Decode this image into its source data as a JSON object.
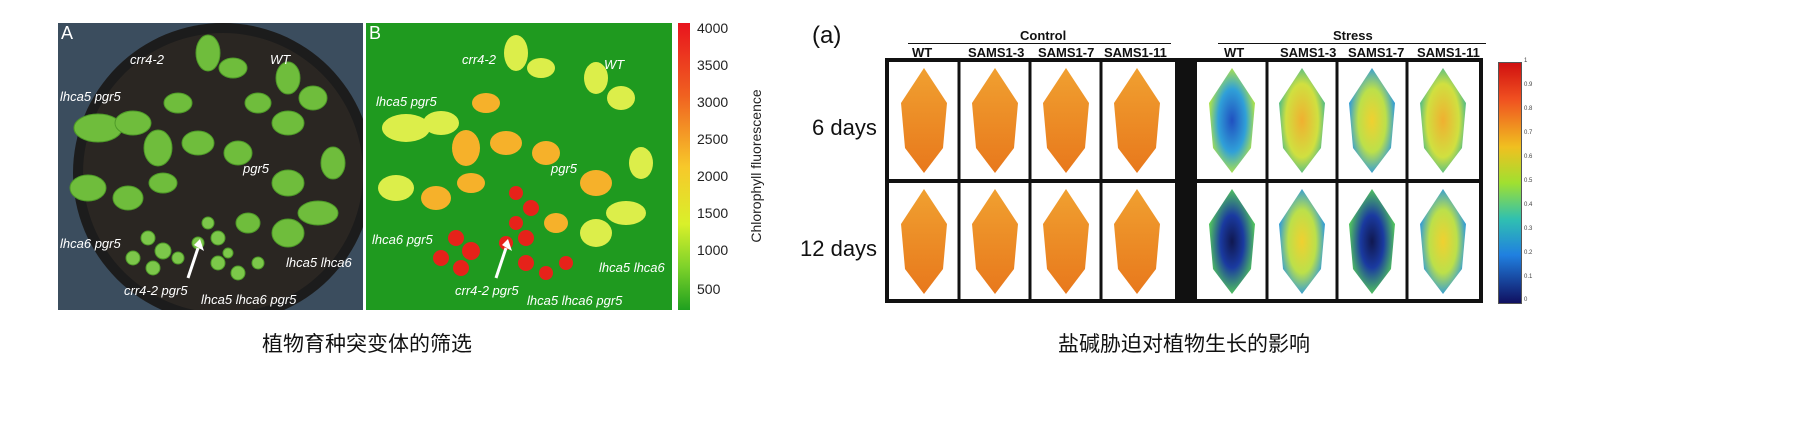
{
  "left_figure": {
    "panel_a": {
      "label": "A",
      "genotypes": [
        "crr4-2",
        "WT",
        "lhca5 pgr5",
        "pgr5",
        "lhca6 pgr5",
        "lhca5 lhca6",
        "crr4-2 pgr5",
        "lhca5 lhca6 pgr5"
      ]
    },
    "panel_b": {
      "label": "B",
      "genotypes": [
        "crr4-2",
        "WT",
        "lhca5 pgr5",
        "pgr5",
        "lhca6 pgr5",
        "lhca5 lhca6",
        "crr4-2 pgr5",
        "lhca5 lhca6 pgr5"
      ]
    },
    "colorbar": {
      "title": "Chlorophyll fluorescence",
      "ticks": [
        "4000",
        "3500",
        "3000",
        "2500",
        "2000",
        "1500",
        "1000",
        "500"
      ]
    },
    "caption": "植物育种突变体的筛选",
    "colors": {
      "panel_a_bg": "#3b4d5e",
      "panel_b_bg": "#1f9a1f"
    }
  },
  "right_figure": {
    "label": "(a)",
    "groups": [
      {
        "title": "Control",
        "columns": [
          "WT",
          "SAMS1-3",
          "SAMS1-7",
          "SAMS1-11"
        ]
      },
      {
        "title": "Stress",
        "columns": [
          "WT",
          "SAMS1-3",
          "SAMS1-7",
          "SAMS1-11"
        ]
      }
    ],
    "rows": [
      "6 days",
      "12 days"
    ],
    "colorbar_ticks": [
      "1",
      "0.9",
      "0.8",
      "0.7",
      "0.6",
      "0.5",
      "0.4",
      "0.3",
      "0.2",
      "0.1",
      "0"
    ],
    "caption": "盐碱胁迫对植物生长的影响"
  }
}
